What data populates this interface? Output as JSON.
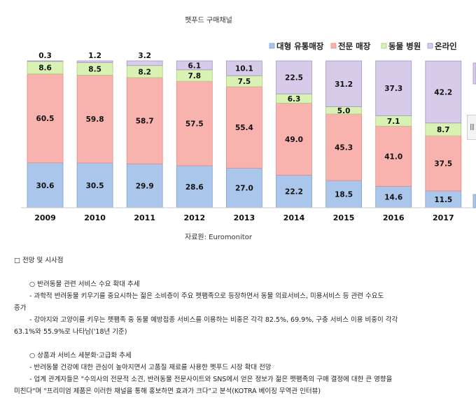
{
  "chart_data": {
    "type": "bar",
    "stacked": true,
    "title": "펫푸드 구매채널",
    "categories": [
      "2009",
      "2010",
      "2011",
      "2012",
      "2013",
      "2014",
      "2015",
      "2016",
      "2017"
    ],
    "series": [
      {
        "name": "대형 유통매장",
        "color": "#aac6ea",
        "values": [
          30.6,
          30.5,
          29.9,
          28.6,
          27.0,
          22.2,
          18.5,
          14.6,
          11.5
        ]
      },
      {
        "name": "전문 매장",
        "color": "#f9b3ae",
        "values": [
          60.5,
          59.8,
          58.7,
          57.5,
          55.4,
          49.0,
          45.3,
          41.0,
          37.5
        ]
      },
      {
        "name": "동물 병원",
        "color": "#d9f2b4",
        "values": [
          8.6,
          8.5,
          8.2,
          7.8,
          7.5,
          6.3,
          5.0,
          7.1,
          8.7
        ]
      },
      {
        "name": "온라인",
        "color": "#d6cce9",
        "values": [
          0.3,
          1.2,
          3.2,
          6.1,
          10.1,
          22.5,
          31.2,
          37.3,
          42.2
        ]
      }
    ],
    "ylim": [
      0,
      100
    ],
    "legend": "top-right",
    "grid": false
  },
  "source": "자료원: Euromonitor",
  "document": {
    "section_heading": "□ 전망 및 시사점",
    "p1_heading": "○ 반려동물 관련 서비스 수요 확대 추세",
    "p1_b1_line1": "- 과학적 반려동물 키우기를 중요시하는 젊은 소비층이 주요 펫팸족으로 등장하면서 동물 의료서비스, 미용서비스 등 관련 수요도",
    "p1_b1_line2": "증가",
    "p1_b2_line1": "- 강아지와 고양이를 키우는 펫팸족 중 동물 예방접종 서비스를 이용하는 비중은 각각 82.5%, 69.9%, 구충 서비스 이용 비중이 각각",
    "p1_b2_line2": "63.1%와 55.9%로 나타남('18년 기준)",
    "p2_heading": "○ 상품과 서비스 세분화·고급화 추세",
    "p2_b1": "- 반려동물 건강에 대한 관심이 높아지면서 고품질 재료를 사용한 펫푸드 시장 확대 전망",
    "p2_b2_line1": "- 업계 관계자들은 \"수의사의 전문적 소견, 반려동물 전문사이트와 SNS에서 얻은 정보가 젊은 펫팸족의 구매 결정에 대한 큰 영향을",
    "p2_b2_line2": "미친다\"며 \"프리미엄 제품은 이러한 채널을 통해 홍보하면 효과가 크다\"고 분석(KOTRA 베이징 무역관 인터뷰)"
  },
  "scroll_handle_glyph": "|||"
}
